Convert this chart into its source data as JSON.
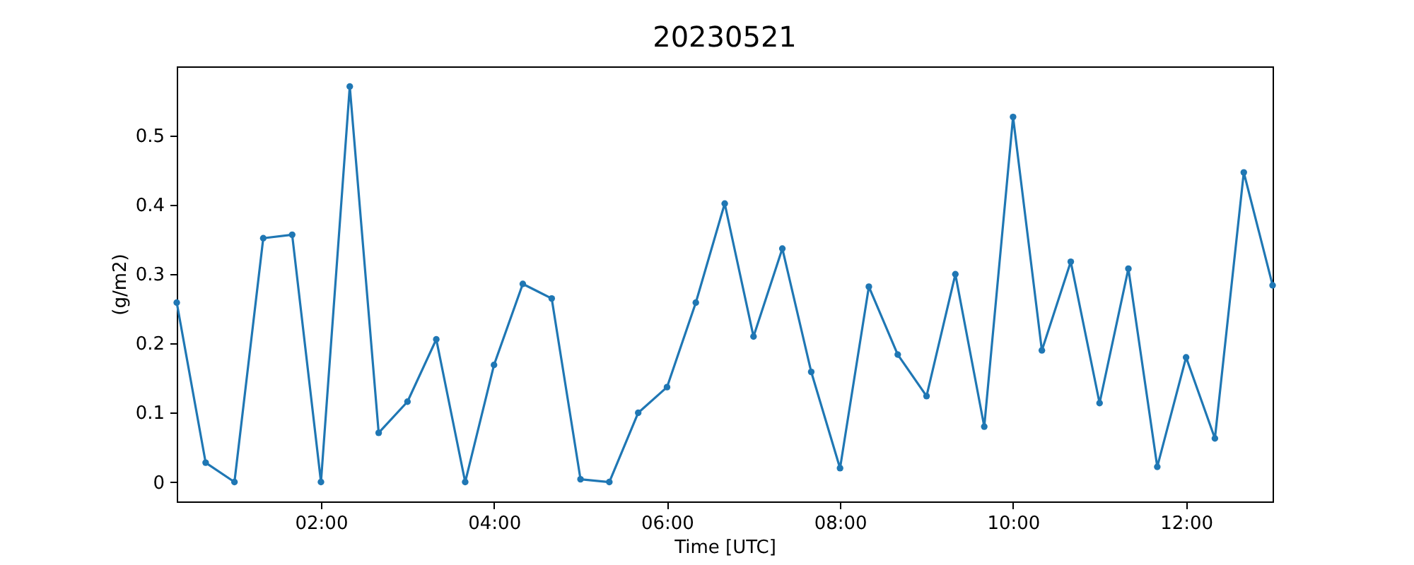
{
  "chart_data": {
    "type": "line",
    "title": "20230521",
    "xlabel": "Time [UTC]",
    "ylabel": "(g/m2)",
    "x": [
      0.333,
      0.667,
      1,
      1.333,
      1.667,
      2,
      2.333,
      2.667,
      3,
      3.333,
      3.667,
      4,
      4.333,
      4.667,
      5,
      5.333,
      5.667,
      6,
      6.333,
      6.667,
      7,
      7.333,
      7.667,
      8,
      8.333,
      8.667,
      9,
      9.333,
      9.667,
      10,
      10.333,
      10.667,
      11,
      11.333,
      11.667,
      12,
      12.333,
      12.667,
      13
    ],
    "series": [
      {
        "color": "#1f77b4",
        "values": [
          0.259,
          0.028,
          0,
          0.352,
          0.357,
          0,
          0.571,
          0.071,
          0.116,
          0.206,
          0,
          0.169,
          0.286,
          0.265,
          0.004,
          0,
          0.1,
          0.137,
          0.259,
          0.402,
          0.21,
          0.337,
          0.159,
          0.02,
          0.282,
          0.184,
          0.124,
          0.3,
          0.08,
          0.527,
          0.19,
          0.318,
          0.114,
          0.308,
          0.022,
          0.18,
          0.063,
          0.447,
          0.284
        ]
      }
    ],
    "xlim": [
      0.333,
      13
    ],
    "xticks": [
      {
        "value": 2,
        "label": "02:00"
      },
      {
        "value": 4,
        "label": "04:00"
      },
      {
        "value": 6,
        "label": "06:00"
      },
      {
        "value": 8,
        "label": "08:00"
      },
      {
        "value": 10,
        "label": "10:00"
      },
      {
        "value": 12,
        "label": "12:00"
      }
    ],
    "ylim": [
      -0.028,
      0.6
    ],
    "yticks": [
      0,
      0.1,
      0.2,
      0.3,
      0.4,
      0.5
    ],
    "marker": "circle",
    "line_style": "solid",
    "grid": false
  }
}
